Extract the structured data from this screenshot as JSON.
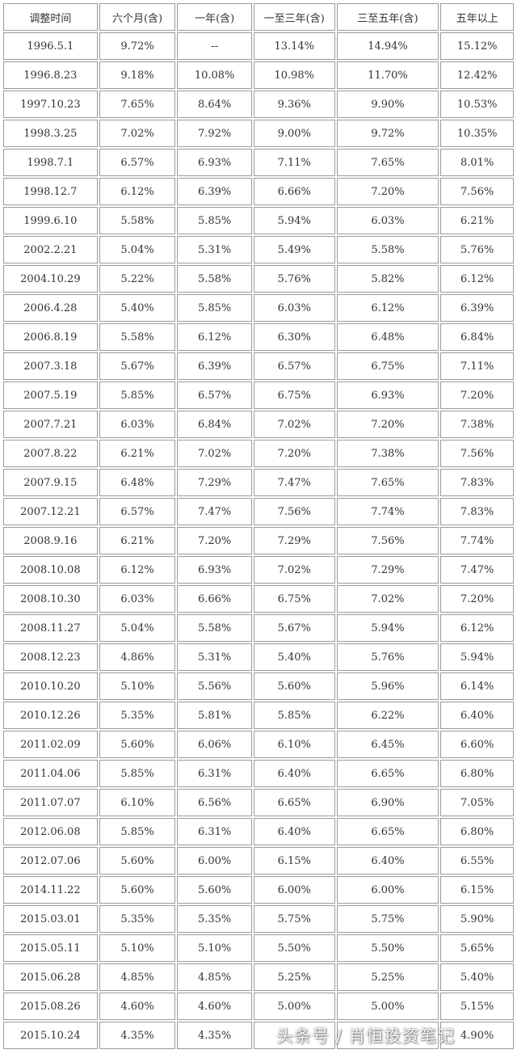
{
  "table": {
    "headers": [
      "调整时间",
      "六个月(含)",
      "一年(含)",
      "一至三年(含)",
      "三至五年(含)",
      "五年以上"
    ],
    "rows": [
      [
        "1996.5.1",
        "9.72%",
        "--",
        "13.14%",
        "14.94%",
        "15.12%"
      ],
      [
        "1996.8.23",
        "9.18%",
        "10.08%",
        "10.98%",
        "11.70%",
        "12.42%"
      ],
      [
        "1997.10.23",
        "7.65%",
        "8.64%",
        "9.36%",
        "9.90%",
        "10.53%"
      ],
      [
        "1998.3.25",
        "7.02%",
        "7.92%",
        "9.00%",
        "9.72%",
        "10.35%"
      ],
      [
        "1998.7.1",
        "6.57%",
        "6.93%",
        "7.11%",
        "7.65%",
        "8.01%"
      ],
      [
        "1998.12.7",
        "6.12%",
        "6.39%",
        "6.66%",
        "7.20%",
        "7.56%"
      ],
      [
        "1999.6.10",
        "5.58%",
        "5.85%",
        "5.94%",
        "6.03%",
        "6.21%"
      ],
      [
        "2002.2.21",
        "5.04%",
        "5.31%",
        "5.49%",
        "5.58%",
        "5.76%"
      ],
      [
        "2004.10.29",
        "5.22%",
        "5.58%",
        "5.76%",
        "5.82%",
        "6.12%"
      ],
      [
        "2006.4.28",
        "5.40%",
        "5.85%",
        "6.03%",
        "6.12%",
        "6.39%"
      ],
      [
        "2006.8.19",
        "5.58%",
        "6.12%",
        "6.30%",
        "6.48%",
        "6.84%"
      ],
      [
        "2007.3.18",
        "5.67%",
        "6.39%",
        "6.57%",
        "6.75%",
        "7.11%"
      ],
      [
        "2007.5.19",
        "5.85%",
        "6.57%",
        "6.75%",
        "6.93%",
        "7.20%"
      ],
      [
        "2007.7.21",
        "6.03%",
        "6.84%",
        "7.02%",
        "7.20%",
        "7.38%"
      ],
      [
        "2007.8.22",
        "6.21%",
        "7.02%",
        "7.20%",
        "7.38%",
        "7.56%"
      ],
      [
        "2007.9.15",
        "6.48%",
        "7.29%",
        "7.47%",
        "7.65%",
        "7.83%"
      ],
      [
        "2007.12.21",
        "6.57%",
        "7.47%",
        "7.56%",
        "7.74%",
        "7.83%"
      ],
      [
        "2008.9.16",
        "6.21%",
        "7.20%",
        "7.29%",
        "7.56%",
        "7.74%"
      ],
      [
        "2008.10.08",
        "6.12%",
        "6.93%",
        "7.02%",
        "7.29%",
        "7.47%"
      ],
      [
        "2008.10.30",
        "6.03%",
        "6.66%",
        "6.75%",
        "7.02%",
        "7.20%"
      ],
      [
        "2008.11.27",
        "5.04%",
        "5.58%",
        "5.67%",
        "5.94%",
        "6.12%"
      ],
      [
        "2008.12.23",
        "4.86%",
        "5.31%",
        "5.40%",
        "5.76%",
        "5.94%"
      ],
      [
        "2010.10.20",
        "5.10%",
        "5.56%",
        "5.60%",
        "5.96%",
        "6.14%"
      ],
      [
        "2010.12.26",
        "5.35%",
        "5.81%",
        "5.85%",
        "6.22%",
        "6.40%"
      ],
      [
        "2011.02.09",
        "5.60%",
        "6.06%",
        "6.10%",
        "6.45%",
        "6.60%"
      ],
      [
        "2011.04.06",
        "5.85%",
        "6.31%",
        "6.40%",
        "6.65%",
        "6.80%"
      ],
      [
        "2011.07.07",
        "6.10%",
        "6.56%",
        "6.65%",
        "6.90%",
        "7.05%"
      ],
      [
        "2012.06.08",
        "5.85%",
        "6.31%",
        "6.40%",
        "6.65%",
        "6.80%"
      ],
      [
        "2012.07.06",
        "5.60%",
        "6.00%",
        "6.15%",
        "6.40%",
        "6.55%"
      ],
      [
        "2014.11.22",
        "5.60%",
        "5.60%",
        "6.00%",
        "6.00%",
        "6.15%"
      ],
      [
        "2015.03.01",
        "5.35%",
        "5.35%",
        "5.75%",
        "5.75%",
        "5.90%"
      ],
      [
        "2015.05.11",
        "5.10%",
        "5.10%",
        "5.50%",
        "5.50%",
        "5.65%"
      ],
      [
        "2015.06.28",
        "4.85%",
        "4.85%",
        "5.25%",
        "5.25%",
        "5.40%"
      ],
      [
        "2015.08.26",
        "4.60%",
        "4.60%",
        "5.00%",
        "5.00%",
        "5.15%"
      ],
      [
        "2015.10.24",
        "4.35%",
        "4.35%",
        "",
        "",
        "4.90%"
      ]
    ]
  },
  "watermark": "头条号 / 肖恒投资笔记",
  "colors": {
    "border": "#9a9a9a",
    "text": "#333333",
    "background": "#ffffff"
  }
}
